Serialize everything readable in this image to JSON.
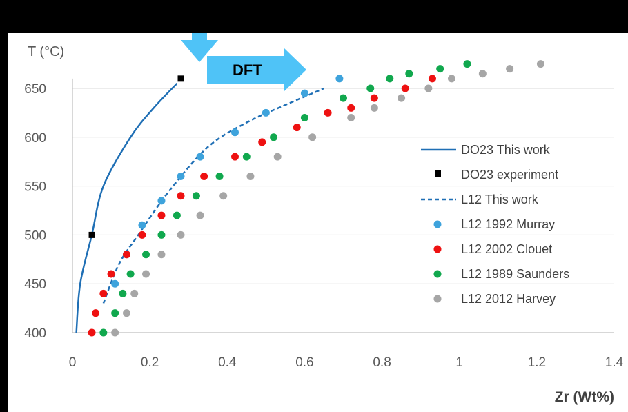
{
  "chart_data": {
    "type": "scatter",
    "xlabel": "Zr (Wt%)",
    "ylabel": "T (°C)",
    "xlim": [
      0,
      1.4
    ],
    "ylim": [
      400,
      660
    ],
    "xticks": [
      "0",
      "0.2",
      "0.4",
      "0.6",
      "0.8",
      "1",
      "1.2",
      "1.4"
    ],
    "yticks": [
      "400",
      "450",
      "500",
      "550",
      "600",
      "650"
    ],
    "grid": "horizontal",
    "legend_position": "right",
    "annotation": "DFT",
    "series": [
      {
        "name": "DO23 This work",
        "kind": "line",
        "style": "solid",
        "color": "#1f6fb5",
        "points": [
          [
            0.01,
            400
          ],
          [
            0.02,
            450
          ],
          [
            0.05,
            500
          ],
          [
            0.08,
            550
          ],
          [
            0.15,
            600
          ],
          [
            0.21,
            630
          ],
          [
            0.27,
            655
          ]
        ]
      },
      {
        "name": "DO23 experiment",
        "kind": "marker",
        "marker": "square",
        "color": "#000000",
        "points": [
          [
            0.05,
            500
          ],
          [
            0.28,
            660
          ]
        ]
      },
      {
        "name": "L12 This work",
        "kind": "line",
        "style": "dashed",
        "color": "#1f6fb5",
        "points": [
          [
            0.08,
            430
          ],
          [
            0.12,
            470
          ],
          [
            0.17,
            500
          ],
          [
            0.25,
            545
          ],
          [
            0.35,
            590
          ],
          [
            0.45,
            615
          ],
          [
            0.55,
            633
          ],
          [
            0.65,
            650
          ]
        ]
      },
      {
        "name": "L12 1992 Murray",
        "kind": "marker",
        "marker": "circle",
        "color": "#3ea3dc",
        "points": [
          [
            0.11,
            450
          ],
          [
            0.14,
            480
          ],
          [
            0.18,
            510
          ],
          [
            0.23,
            535
          ],
          [
            0.28,
            560
          ],
          [
            0.33,
            580
          ],
          [
            0.42,
            605
          ],
          [
            0.5,
            625
          ],
          [
            0.6,
            645
          ],
          [
            0.69,
            660
          ]
        ]
      },
      {
        "name": "L12 2002 Clouet",
        "kind": "marker",
        "marker": "circle",
        "color": "#ee1111",
        "points": [
          [
            0.05,
            400
          ],
          [
            0.06,
            420
          ],
          [
            0.08,
            440
          ],
          [
            0.1,
            460
          ],
          [
            0.14,
            480
          ],
          [
            0.18,
            500
          ],
          [
            0.23,
            520
          ],
          [
            0.28,
            540
          ],
          [
            0.34,
            560
          ],
          [
            0.42,
            580
          ],
          [
            0.49,
            595
          ],
          [
            0.58,
            610
          ],
          [
            0.66,
            625
          ],
          [
            0.72,
            630
          ],
          [
            0.78,
            640
          ],
          [
            0.86,
            650
          ],
          [
            0.93,
            660
          ]
        ]
      },
      {
        "name": "L12 1989 Saunders",
        "kind": "marker",
        "marker": "circle",
        "color": "#11a84e",
        "points": [
          [
            0.08,
            400
          ],
          [
            0.11,
            420
          ],
          [
            0.13,
            440
          ],
          [
            0.15,
            460
          ],
          [
            0.19,
            480
          ],
          [
            0.23,
            500
          ],
          [
            0.27,
            520
          ],
          [
            0.32,
            540
          ],
          [
            0.38,
            560
          ],
          [
            0.45,
            580
          ],
          [
            0.52,
            600
          ],
          [
            0.6,
            620
          ],
          [
            0.7,
            640
          ],
          [
            0.77,
            650
          ],
          [
            0.82,
            660
          ],
          [
            0.87,
            665
          ],
          [
            0.95,
            670
          ],
          [
            1.02,
            675
          ]
        ]
      },
      {
        "name": "L12 2012 Harvey",
        "kind": "marker",
        "marker": "circle",
        "color": "#a6a6a6",
        "points": [
          [
            0.11,
            400
          ],
          [
            0.14,
            420
          ],
          [
            0.16,
            440
          ],
          [
            0.19,
            460
          ],
          [
            0.23,
            480
          ],
          [
            0.28,
            500
          ],
          [
            0.33,
            520
          ],
          [
            0.39,
            540
          ],
          [
            0.46,
            560
          ],
          [
            0.53,
            580
          ],
          [
            0.62,
            600
          ],
          [
            0.72,
            620
          ],
          [
            0.78,
            630
          ],
          [
            0.85,
            640
          ],
          [
            0.92,
            650
          ],
          [
            0.98,
            660
          ],
          [
            1.06,
            665
          ],
          [
            1.13,
            670
          ],
          [
            1.21,
            675
          ]
        ]
      }
    ]
  }
}
